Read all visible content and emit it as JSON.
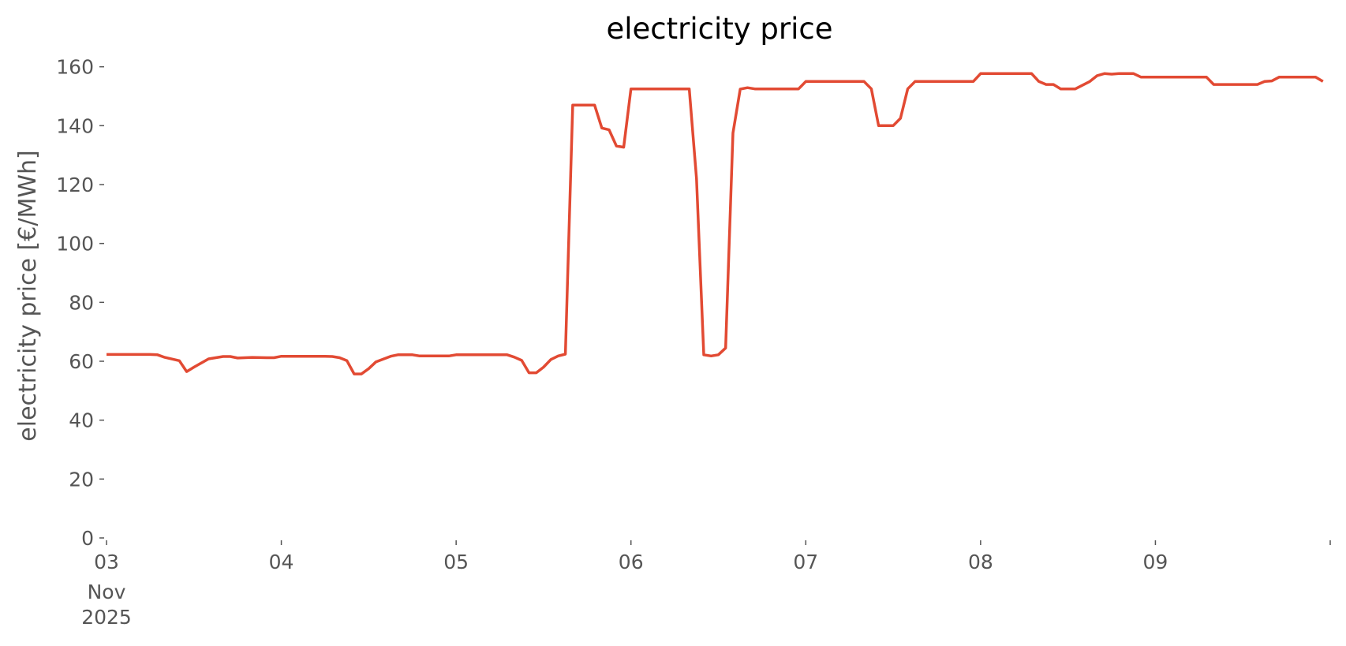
{
  "chart_data": {
    "type": "line",
    "title": "electricity price",
    "xlabel": "",
    "ylabel": "electricity price [€/MWh]",
    "ylim": [
      0,
      165
    ],
    "xlim": [
      "2025-11-03T00:00",
      "2025-11-10T00:00"
    ],
    "x_tick_labels": [
      "03",
      "04",
      "05",
      "06",
      "07",
      "08",
      "09"
    ],
    "x_tick_sublabels": [
      "Nov",
      "2025"
    ],
    "y_ticks": [
      0,
      20,
      40,
      60,
      80,
      100,
      120,
      140,
      160
    ],
    "grid": false,
    "line_color": "#E24A33",
    "series": [
      {
        "points": [
          [
            "2025-11-03T00:00",
            62.3
          ],
          [
            "2025-11-03T06:00",
            62.3
          ],
          [
            "2025-11-03T07:00",
            62.2
          ],
          [
            "2025-11-03T08:00",
            61.3
          ],
          [
            "2025-11-03T10:00",
            60.2
          ],
          [
            "2025-11-03T11:00",
            56.5
          ],
          [
            "2025-11-03T12:00",
            58.0
          ],
          [
            "2025-11-03T14:00",
            60.8
          ],
          [
            "2025-11-03T16:00",
            61.6
          ],
          [
            "2025-11-03T17:00",
            61.6
          ],
          [
            "2025-11-03T18:00",
            61.1
          ],
          [
            "2025-11-03T20:00",
            61.3
          ],
          [
            "2025-11-03T22:00",
            61.2
          ],
          [
            "2025-11-03T23:00",
            61.2
          ],
          [
            "2025-11-04T00:00",
            61.7
          ],
          [
            "2025-11-04T06:00",
            61.7
          ],
          [
            "2025-11-04T07:00",
            61.6
          ],
          [
            "2025-11-04T08:00",
            61.2
          ],
          [
            "2025-11-04T09:00",
            60.2
          ],
          [
            "2025-11-04T10:00",
            55.7
          ],
          [
            "2025-11-04T11:00",
            55.7
          ],
          [
            "2025-11-04T12:00",
            57.5
          ],
          [
            "2025-11-04T13:00",
            59.8
          ],
          [
            "2025-11-04T15:00",
            61.7
          ],
          [
            "2025-11-04T16:00",
            62.2
          ],
          [
            "2025-11-04T18:00",
            62.2
          ],
          [
            "2025-11-04T19:00",
            61.8
          ],
          [
            "2025-11-04T23:00",
            61.8
          ],
          [
            "2025-11-05T00:00",
            62.2
          ],
          [
            "2025-11-05T07:00",
            62.2
          ],
          [
            "2025-11-05T08:00",
            61.4
          ],
          [
            "2025-11-05T09:00",
            60.3
          ],
          [
            "2025-11-05T10:00",
            56.1
          ],
          [
            "2025-11-05T11:00",
            56.1
          ],
          [
            "2025-11-05T12:00",
            58.0
          ],
          [
            "2025-11-05T13:00",
            60.6
          ],
          [
            "2025-11-05T14:00",
            61.8
          ],
          [
            "2025-11-05T15:00",
            62.4
          ],
          [
            "2025-11-05T16:00",
            147.0
          ],
          [
            "2025-11-05T19:00",
            147.0
          ],
          [
            "2025-11-05T20:00",
            139.2
          ],
          [
            "2025-11-05T21:00",
            138.6
          ],
          [
            "2025-11-05T22:00",
            133.1
          ],
          [
            "2025-11-05T23:00",
            132.7
          ],
          [
            "2025-11-06T00:00",
            152.5
          ],
          [
            "2025-11-06T08:00",
            152.5
          ],
          [
            "2025-11-06T09:00",
            122.0
          ],
          [
            "2025-11-06T10:00",
            62.2
          ],
          [
            "2025-11-06T11:00",
            61.8
          ],
          [
            "2025-11-06T12:00",
            62.2
          ],
          [
            "2025-11-06T13:00",
            64.5
          ],
          [
            "2025-11-06T14:00",
            137.5
          ],
          [
            "2025-11-06T15:00",
            152.4
          ],
          [
            "2025-11-06T16:00",
            152.9
          ],
          [
            "2025-11-06T17:00",
            152.5
          ],
          [
            "2025-11-06T23:00",
            152.5
          ],
          [
            "2025-11-07T00:00",
            155.0
          ],
          [
            "2025-11-07T08:00",
            155.0
          ],
          [
            "2025-11-07T09:00",
            152.5
          ],
          [
            "2025-11-07T10:00",
            140.0
          ],
          [
            "2025-11-07T12:00",
            140.0
          ],
          [
            "2025-11-07T13:00",
            142.5
          ],
          [
            "2025-11-07T14:00",
            152.5
          ],
          [
            "2025-11-07T15:00",
            155.0
          ],
          [
            "2025-11-07T23:00",
            155.0
          ],
          [
            "2025-11-08T00:00",
            157.7
          ],
          [
            "2025-11-08T07:00",
            157.7
          ],
          [
            "2025-11-08T08:00",
            155.0
          ],
          [
            "2025-11-08T09:00",
            154.0
          ],
          [
            "2025-11-08T10:00",
            154.0
          ],
          [
            "2025-11-08T11:00",
            152.5
          ],
          [
            "2025-11-08T13:00",
            152.5
          ],
          [
            "2025-11-08T15:00",
            155.0
          ],
          [
            "2025-11-08T16:00",
            157.0
          ],
          [
            "2025-11-08T17:00",
            157.7
          ],
          [
            "2025-11-08T18:00",
            157.5
          ],
          [
            "2025-11-08T19:00",
            157.7
          ],
          [
            "2025-11-08T21:00",
            157.7
          ],
          [
            "2025-11-08T22:00",
            156.5
          ],
          [
            "2025-11-09T07:00",
            156.5
          ],
          [
            "2025-11-09T08:00",
            154.0
          ],
          [
            "2025-11-09T14:00",
            154.0
          ],
          [
            "2025-11-09T15:00",
            155.0
          ],
          [
            "2025-11-09T16:00",
            155.2
          ],
          [
            "2025-11-09T17:00",
            156.5
          ],
          [
            "2025-11-09T22:00",
            156.5
          ],
          [
            "2025-11-09T23:00",
            155.0
          ]
        ]
      }
    ]
  }
}
